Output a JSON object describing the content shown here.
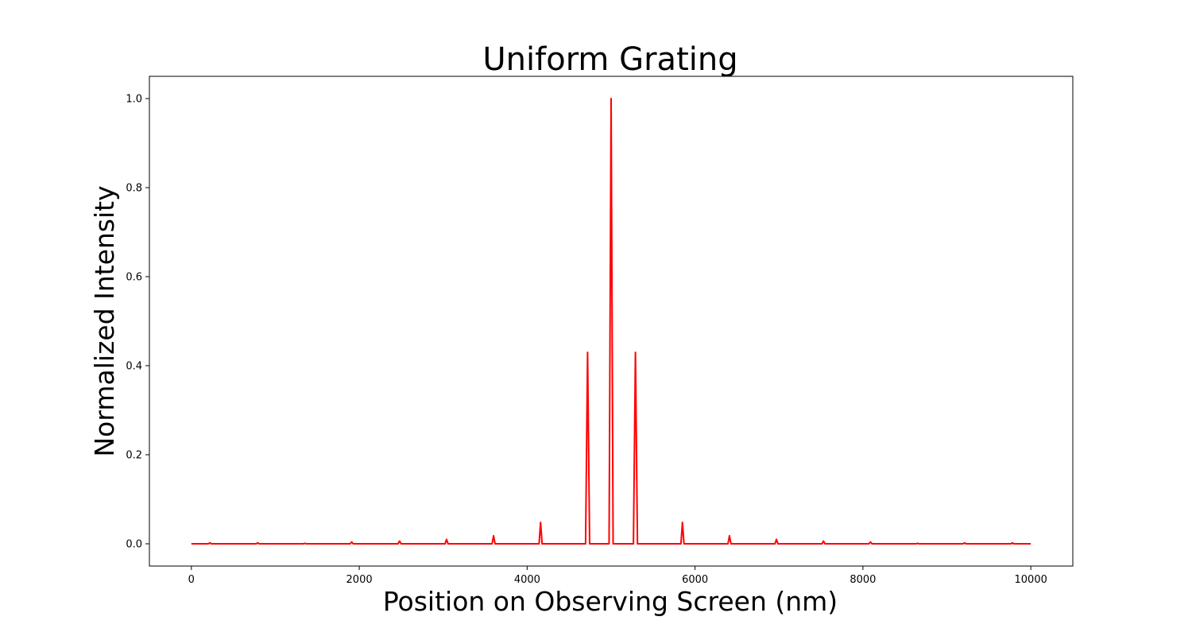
{
  "chart_data": {
    "type": "line",
    "title": "Uniform Grating",
    "xlabel": "Position on Observing Screen (nm)",
    "ylabel": "Normalized Intensity",
    "xlim": [
      -500,
      10500
    ],
    "ylim": [
      -0.05,
      1.05
    ],
    "xticks": [
      0,
      2000,
      4000,
      6000,
      8000,
      10000
    ],
    "yticks": [
      0.0,
      0.2,
      0.4,
      0.6,
      0.8,
      1.0
    ],
    "xtick_labels": [
      "0",
      "2000",
      "4000",
      "6000",
      "8000",
      "10000"
    ],
    "ytick_labels": [
      "0.0",
      "0.2",
      "0.4",
      "0.6",
      "0.8",
      "1.0"
    ],
    "grid": false,
    "series": [
      {
        "color": "#ff0000",
        "baseline": 0.0,
        "x_range": [
          0,
          10000
        ],
        "peaks": [
          {
            "x": 220,
            "y": 0.002
          },
          {
            "x": 790,
            "y": 0.002
          },
          {
            "x": 1350,
            "y": 0.001
          },
          {
            "x": 1910,
            "y": 0.004
          },
          {
            "x": 2480,
            "y": 0.006
          },
          {
            "x": 3040,
            "y": 0.01
          },
          {
            "x": 3600,
            "y": 0.018
          },
          {
            "x": 4160,
            "y": 0.048
          },
          {
            "x": 4720,
            "y": 0.43
          },
          {
            "x": 5000,
            "y": 1.0
          },
          {
            "x": 5290,
            "y": 0.43
          },
          {
            "x": 5850,
            "y": 0.048
          },
          {
            "x": 6410,
            "y": 0.018
          },
          {
            "x": 6970,
            "y": 0.01
          },
          {
            "x": 7530,
            "y": 0.006
          },
          {
            "x": 8090,
            "y": 0.004
          },
          {
            "x": 8650,
            "y": 0.001
          },
          {
            "x": 9210,
            "y": 0.002
          },
          {
            "x": 9780,
            "y": 0.002
          }
        ]
      }
    ]
  }
}
